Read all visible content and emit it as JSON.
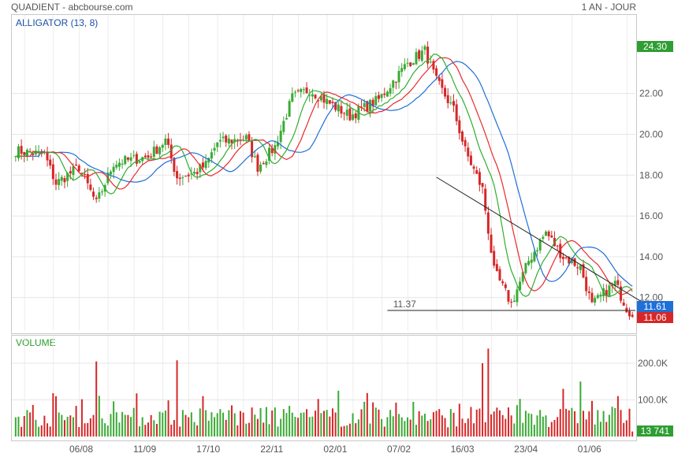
{
  "header": {
    "left": "QUADIENT - abcbourse.com",
    "right": "1 AN - JOUR"
  },
  "price_panel": {
    "label": "ALLIGATOR (13, 8)"
  },
  "volume_panel": {
    "label": "VOLUME"
  },
  "badges": {
    "high": "24.30",
    "last_top": "11.61",
    "last_bottom": "11.06",
    "volume": "13 741"
  },
  "annotation": {
    "support_label": "11.37"
  },
  "colors": {
    "up": "#3aaa35",
    "down": "#d62728",
    "jaw": "#1f6fd6",
    "teeth": "#e8292e",
    "lips": "#2fae2f"
  },
  "chart_data": [
    {
      "type": "candlestick",
      "title": "ALLIGATOR (13, 8)",
      "x_tick_labels": [
        "06/08",
        "11/09",
        "17/10",
        "22/11",
        "02/01",
        "07/02",
        "16/03",
        "23/04",
        "01/06"
      ],
      "y_tick_labels": [
        "12.00",
        "14.00",
        "16.00",
        "18.00",
        "20.00",
        "22.00"
      ],
      "ylim": [
        11.06,
        24.3
      ],
      "grid": true,
      "support_line": 11.37,
      "price_waypoints": [
        {
          "x": 0,
          "y": 19.2
        },
        {
          "x": 10,
          "y": 19.0
        },
        {
          "x": 14,
          "y": 17.6
        },
        {
          "x": 22,
          "y": 18.4
        },
        {
          "x": 28,
          "y": 16.6
        },
        {
          "x": 34,
          "y": 18.6
        },
        {
          "x": 46,
          "y": 18.9
        },
        {
          "x": 52,
          "y": 19.7
        },
        {
          "x": 56,
          "y": 17.9
        },
        {
          "x": 62,
          "y": 18.1
        },
        {
          "x": 66,
          "y": 18.5
        },
        {
          "x": 70,
          "y": 19.6
        },
        {
          "x": 80,
          "y": 19.8
        },
        {
          "x": 84,
          "y": 18.4
        },
        {
          "x": 90,
          "y": 19.4
        },
        {
          "x": 96,
          "y": 21.8
        },
        {
          "x": 102,
          "y": 22.2
        },
        {
          "x": 108,
          "y": 21.6
        },
        {
          "x": 116,
          "y": 20.9
        },
        {
          "x": 126,
          "y": 21.7
        },
        {
          "x": 136,
          "y": 23.5
        },
        {
          "x": 142,
          "y": 24.1
        },
        {
          "x": 146,
          "y": 22.6
        },
        {
          "x": 152,
          "y": 21.2
        },
        {
          "x": 156,
          "y": 19.2
        },
        {
          "x": 162,
          "y": 17.3
        },
        {
          "x": 166,
          "y": 13.3
        },
        {
          "x": 172,
          "y": 11.7
        },
        {
          "x": 178,
          "y": 13.8
        },
        {
          "x": 184,
          "y": 15.2
        },
        {
          "x": 190,
          "y": 14.0
        },
        {
          "x": 196,
          "y": 13.5
        },
        {
          "x": 200,
          "y": 11.6
        },
        {
          "x": 204,
          "y": 12.2
        },
        {
          "x": 208,
          "y": 12.7
        },
        {
          "x": 212,
          "y": 11.5
        },
        {
          "x": 214,
          "y": 11.1
        }
      ],
      "series": [
        {
          "name": "Jaw",
          "kind": "slow moving average"
        },
        {
          "name": "Teeth",
          "kind": "medium moving average"
        },
        {
          "name": "Lips",
          "kind": "fast moving average"
        }
      ]
    },
    {
      "type": "bar",
      "title": "VOLUME",
      "y_tick_labels": [
        "100.0K",
        "200.0K"
      ],
      "ylim": [
        0,
        250000
      ],
      "last_value": 13741,
      "spikes": [
        {
          "x": 28,
          "value": 205000
        },
        {
          "x": 56,
          "value": 208000
        },
        {
          "x": 112,
          "value": 125000
        },
        {
          "x": 162,
          "value": 200000
        },
        {
          "x": 164,
          "value": 240000
        },
        {
          "x": 190,
          "value": 130000
        },
        {
          "x": 196,
          "value": 150000
        }
      ]
    }
  ]
}
